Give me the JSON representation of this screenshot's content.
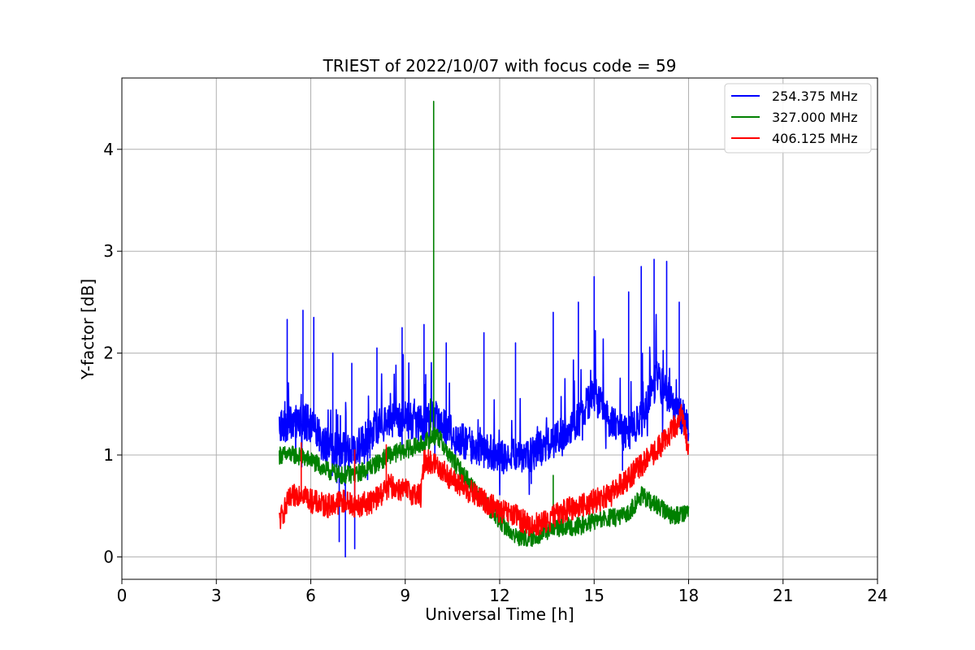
{
  "chart_data": {
    "type": "line",
    "title": "TRIEST of 2022/10/07 with focus code = 59",
    "xlabel": "Universal Time [h]",
    "ylabel": "Y-factor [dB]",
    "xlim": [
      0,
      24
    ],
    "ylim": [
      -0.22,
      4.7
    ],
    "x_ticks": [
      0,
      3,
      6,
      9,
      12,
      15,
      18,
      21,
      24
    ],
    "y_ticks": [
      0,
      1,
      2,
      3,
      4
    ],
    "grid": true,
    "legend_position": "top-right",
    "series": [
      {
        "name": "254.375 MHz",
        "color": "#0000ff",
        "x": [
          5.0,
          5.3,
          5.7,
          6.0,
          6.4,
          6.8,
          7.2,
          7.6,
          8.0,
          8.5,
          9.0,
          9.5,
          10.0,
          10.5,
          11.0,
          11.5,
          12.0,
          12.5,
          13.0,
          13.5,
          14.0,
          14.5,
          15.0,
          15.5,
          16.0,
          16.5,
          17.0,
          17.5,
          18.0
        ],
        "y": [
          1.3,
          1.3,
          1.35,
          1.3,
          1.1,
          1.05,
          1.05,
          1.1,
          1.25,
          1.35,
          1.35,
          1.3,
          1.35,
          1.2,
          1.1,
          1.05,
          1.0,
          0.98,
          1.0,
          1.1,
          1.2,
          1.35,
          1.6,
          1.35,
          1.2,
          1.35,
          1.75,
          1.5,
          1.3
        ],
        "spikes": [
          {
            "x": 5.25,
            "y": 2.33
          },
          {
            "x": 5.75,
            "y": 2.42
          },
          {
            "x": 6.1,
            "y": 2.35
          },
          {
            "x": 6.7,
            "y": 2.0
          },
          {
            "x": 7.3,
            "y": 1.9
          },
          {
            "x": 8.1,
            "y": 2.05
          },
          {
            "x": 8.9,
            "y": 2.25
          },
          {
            "x": 9.6,
            "y": 2.28
          },
          {
            "x": 10.3,
            "y": 2.1
          },
          {
            "x": 11.5,
            "y": 2.2
          },
          {
            "x": 12.5,
            "y": 2.1
          },
          {
            "x": 13.7,
            "y": 2.4
          },
          {
            "x": 14.5,
            "y": 2.5
          },
          {
            "x": 15.0,
            "y": 2.75
          },
          {
            "x": 16.1,
            "y": 2.6
          },
          {
            "x": 16.5,
            "y": 2.85
          },
          {
            "x": 16.9,
            "y": 2.92
          },
          {
            "x": 17.3,
            "y": 2.9
          },
          {
            "x": 17.7,
            "y": 2.5
          }
        ],
        "dips": [
          {
            "x": 6.9,
            "y": 0.15
          },
          {
            "x": 7.1,
            "y": 0.0
          },
          {
            "x": 7.4,
            "y": 0.08
          },
          {
            "x": 9.6,
            "y": 0.9
          },
          {
            "x": 13.0,
            "y": 0.72
          },
          {
            "x": 15.9,
            "y": 0.85
          }
        ]
      },
      {
        "name": "327.000 MHz",
        "color": "#008000",
        "x": [
          5.0,
          5.5,
          6.0,
          6.5,
          7.0,
          7.5,
          8.0,
          8.5,
          9.0,
          9.5,
          10.0,
          10.5,
          11.0,
          11.5,
          12.0,
          12.5,
          13.0,
          13.5,
          14.0,
          14.5,
          15.0,
          15.5,
          16.0,
          16.5,
          17.0,
          17.5,
          18.0
        ],
        "y": [
          1.0,
          1.0,
          0.95,
          0.85,
          0.8,
          0.82,
          0.9,
          1.0,
          1.05,
          1.1,
          1.2,
          0.95,
          0.75,
          0.55,
          0.35,
          0.2,
          0.18,
          0.25,
          0.3,
          0.3,
          0.35,
          0.38,
          0.4,
          0.6,
          0.5,
          0.4,
          0.45
        ],
        "spikes": [
          {
            "x": 9.9,
            "y": 4.47
          },
          {
            "x": 9.8,
            "y": 1.55
          },
          {
            "x": 13.7,
            "y": 0.8
          }
        ]
      },
      {
        "name": "406.125 MHz",
        "color": "#ff0000",
        "x": [
          5.0,
          5.3,
          5.7,
          6.0,
          6.5,
          7.0,
          7.5,
          8.0,
          8.5,
          9.0,
          9.5,
          9.6,
          10.0,
          10.5,
          11.0,
          11.5,
          12.0,
          12.5,
          13.0,
          13.5,
          14.0,
          14.5,
          15.0,
          15.5,
          16.0,
          16.5,
          17.0,
          17.5,
          17.8,
          18.0
        ],
        "y": [
          0.35,
          0.55,
          0.65,
          0.55,
          0.5,
          0.55,
          0.5,
          0.55,
          0.7,
          0.65,
          0.6,
          0.95,
          0.9,
          0.75,
          0.65,
          0.55,
          0.45,
          0.4,
          0.3,
          0.35,
          0.45,
          0.5,
          0.55,
          0.6,
          0.75,
          0.9,
          1.05,
          1.25,
          1.4,
          1.05
        ],
        "spikes": [
          {
            "x": 5.7,
            "y": 1.12
          },
          {
            "x": 7.4,
            "y": 1.05
          },
          {
            "x": 8.4,
            "y": 1.1
          }
        ]
      }
    ]
  }
}
